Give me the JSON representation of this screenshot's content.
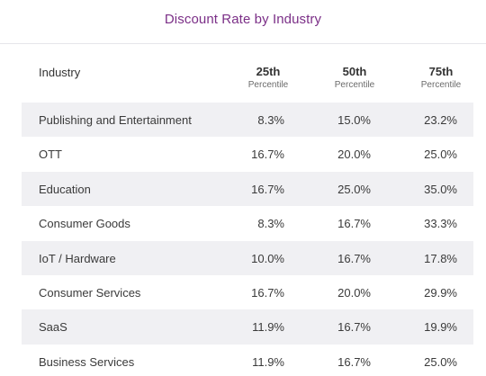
{
  "title": "Discount Rate by Industry",
  "header": {
    "industry": "Industry",
    "p25": "25th",
    "p50": "50th",
    "p75": "75th",
    "percentile": "Percentile"
  },
  "rows": [
    {
      "industry": "Publishing and Entertainment",
      "p25": "8.3%",
      "p50": "15.0%",
      "p75": "23.2%"
    },
    {
      "industry": "OTT",
      "p25": "16.7%",
      "p50": "20.0%",
      "p75": "25.0%"
    },
    {
      "industry": "Education",
      "p25": "16.7%",
      "p50": "25.0%",
      "p75": "35.0%"
    },
    {
      "industry": "Consumer Goods",
      "p25": "8.3%",
      "p50": "16.7%",
      "p75": "33.3%"
    },
    {
      "industry": "IoT / Hardware",
      "p25": "10.0%",
      "p50": "16.7%",
      "p75": "17.8%"
    },
    {
      "industry": "Consumer Services",
      "p25": "16.7%",
      "p50": "20.0%",
      "p75": "29.9%"
    },
    {
      "industry": "SaaS",
      "p25": "11.9%",
      "p50": "16.7%",
      "p75": "19.9%"
    },
    {
      "industry": "Business Services",
      "p25": "11.9%",
      "p50": "16.7%",
      "p75": "25.0%"
    }
  ],
  "colors": {
    "title": "#7b2f87",
    "row_alt": "#f0f0f3",
    "text": "#3a3a3a"
  }
}
